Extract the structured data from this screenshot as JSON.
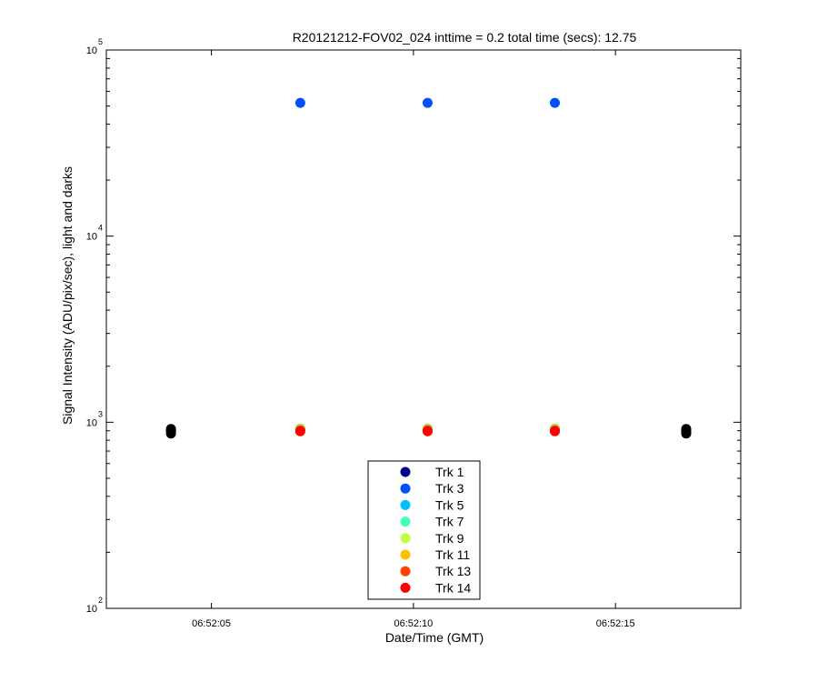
{
  "chart_data": {
    "type": "scatter",
    "title": "R20121212-FOV02_024 inttime = 0.2 total time (secs): 12.75",
    "xlabel": "Date/Time (GMT)",
    "ylabel": "Signal Intensity (ADU/pix/sec), light and darks",
    "x_unit": "seconds within 06:52",
    "xlim": [
      2.4,
      18.1
    ],
    "ylim": [
      100,
      100000
    ],
    "yscale": "log",
    "grid": false,
    "legend_position": "bottom-center",
    "x_ticks": [
      {
        "value": 5,
        "label": "06:52:05"
      },
      {
        "value": 10,
        "label": "06:52:10"
      },
      {
        "value": 15,
        "label": "06:52:15"
      }
    ],
    "y_ticks": [
      {
        "value": 100,
        "base": "10",
        "exp": "2"
      },
      {
        "value": 1000,
        "base": "10",
        "exp": "3"
      },
      {
        "value": 10000,
        "base": "10",
        "exp": "4"
      },
      {
        "value": 100000,
        "base": "10",
        "exp": "5"
      }
    ],
    "series": [
      {
        "name": "Trk 1",
        "color": "#00008F",
        "x": [
          7.2,
          10.35,
          13.5
        ],
        "y": [
          920,
          920,
          920
        ]
      },
      {
        "name": "Trk 3",
        "color": "#0050FF",
        "x": [
          7.2,
          10.35,
          13.5
        ],
        "y": [
          52000,
          52000,
          52000
        ]
      },
      {
        "name": "Trk 5",
        "color": "#00BFFF",
        "x": [
          7.2,
          10.35,
          13.5
        ],
        "y": [
          925,
          925,
          925
        ]
      },
      {
        "name": "Trk 7",
        "color": "#40FFBF",
        "x": [
          7.2,
          10.35,
          13.5
        ],
        "y": [
          922,
          922,
          922
        ]
      },
      {
        "name": "Trk 9",
        "color": "#BFFF40",
        "x": [
          7.2,
          10.35,
          13.5
        ],
        "y": [
          920,
          920,
          920
        ]
      },
      {
        "name": "Trk 11",
        "color": "#FFBF00",
        "x": [
          7.2,
          10.35,
          13.5
        ],
        "y": [
          915,
          915,
          915
        ]
      },
      {
        "name": "Trk 13",
        "color": "#FF4000",
        "x": [
          7.2,
          10.35,
          13.5
        ],
        "y": [
          905,
          905,
          905
        ]
      },
      {
        "name": "Trk 14",
        "color": "#FF0000",
        "x": [
          7.2,
          10.35,
          13.5
        ],
        "y": [
          895,
          895,
          895
        ]
      }
    ],
    "darks": {
      "color": "#000000",
      "x": [
        4.0,
        4.0,
        4.0,
        4.0,
        16.75,
        16.75,
        16.75,
        16.75
      ],
      "y": [
        870,
        890,
        905,
        920,
        870,
        890,
        905,
        920
      ]
    }
  }
}
